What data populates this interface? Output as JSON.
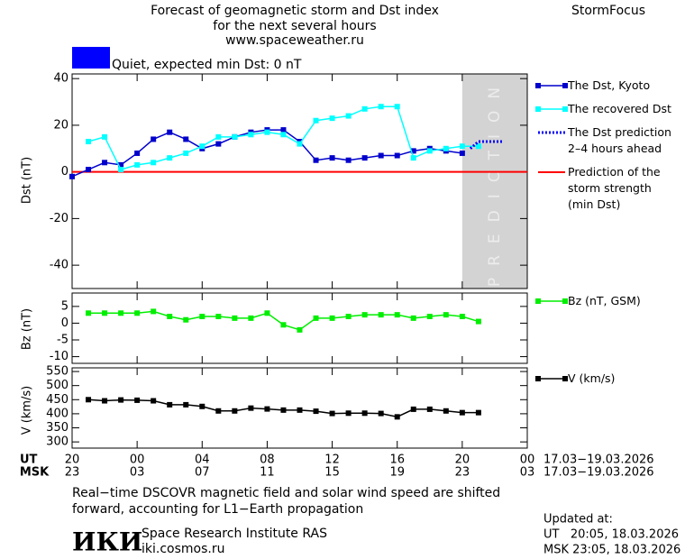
{
  "header": {
    "title_lines": [
      "Forecast of geomagnetic storm and Dst index",
      "for the next several hours",
      "www.spaceweather.ru"
    ],
    "brand": "StormFocus",
    "status": "Quiet, expected min Dst: 0 nT",
    "status_color": "#0000ff"
  },
  "time_axis": {
    "ut_label": "UT",
    "msk_label": "MSK",
    "msk_tick_labels": [
      "23",
      "03",
      "07",
      "11",
      "15",
      "19",
      "23",
      "03"
    ],
    "date_range_ut": "17.03−19.03.2026",
    "date_range_msk": "17.03−19.03.2026"
  },
  "chart_data": [
    {
      "type": "line",
      "ylabel": "Dst (nT)",
      "xlim": [
        0,
        28
      ],
      "ylim": [
        -50,
        42
      ],
      "yticks": [
        40,
        20,
        0,
        -20,
        -40
      ],
      "prediction_band": {
        "x": [
          24,
          28
        ],
        "label": "PREDICTION",
        "color": "#d3d3d3"
      },
      "series": [
        {
          "name": "The Dst, Kyoto",
          "color": "#0000cc",
          "marker": "square",
          "x": [
            0,
            1,
            2,
            3,
            4,
            5,
            6,
            7,
            8,
            9,
            10,
            11,
            12,
            13,
            14,
            15,
            16,
            17,
            18,
            19,
            20,
            21,
            22,
            23,
            24
          ],
          "values": [
            -2,
            1,
            4,
            3,
            8,
            14,
            17,
            14,
            10,
            12,
            15,
            17,
            18,
            18,
            13,
            5,
            6,
            5,
            6,
            7,
            7,
            9,
            10,
            9,
            8
          ]
        },
        {
          "name": "The recovered Dst",
          "color": "#00ffff",
          "marker": "square",
          "x": [
            1,
            2,
            3,
            4,
            5,
            6,
            7,
            8,
            9,
            10,
            11,
            12,
            13,
            14,
            15,
            16,
            17,
            18,
            19,
            20,
            21,
            22,
            23,
            24,
            25
          ],
          "values": [
            13,
            15,
            1,
            3,
            4,
            6,
            8,
            11,
            15,
            15,
            16,
            17,
            16,
            12,
            22,
            23,
            24,
            27,
            28,
            28,
            6,
            9,
            10,
            11,
            11
          ]
        },
        {
          "name": "The Dst prediction\n2–4 hours ahead",
          "color": "#0000ff",
          "style": "dotted",
          "x": [
            24.5,
            25,
            26.5
          ],
          "values": [
            10,
            13,
            13
          ]
        }
      ],
      "threshold": {
        "name": "Prediction of the\nstorm strength\n(min Dst)",
        "value": 0,
        "color": "#ff0000"
      }
    },
    {
      "type": "line",
      "ylabel": "Bz (nT)",
      "xlim": [
        0,
        28
      ],
      "ylim": [
        -12,
        9
      ],
      "yticks": [
        5,
        0,
        -5,
        -10
      ],
      "series": [
        {
          "name": "Bz (nT, GSM)",
          "color": "#00ee00",
          "marker": "square",
          "x": [
            1,
            2,
            3,
            4,
            5,
            6,
            7,
            8,
            9,
            10,
            11,
            12,
            13,
            14,
            15,
            16,
            17,
            18,
            19,
            20,
            21,
            22,
            23,
            24,
            25
          ],
          "values": [
            3,
            3,
            3,
            3,
            3.5,
            2,
            1,
            2,
            2,
            1.5,
            1.5,
            3,
            -0.5,
            -2,
            1.5,
            1.5,
            2,
            2.5,
            2.5,
            2.5,
            1.5,
            2,
            2.5,
            2,
            0.5
          ]
        }
      ]
    },
    {
      "type": "line",
      "ylabel": "V (km/s)",
      "xlim": [
        0,
        28
      ],
      "ylim": [
        278,
        563
      ],
      "yticks": [
        550,
        500,
        450,
        400,
        350,
        300
      ],
      "xticks": [
        {
          "value": 0,
          "label": "20"
        },
        {
          "value": 4,
          "label": "00"
        },
        {
          "value": 8,
          "label": "04"
        },
        {
          "value": 12,
          "label": "08"
        },
        {
          "value": 16,
          "label": "12"
        },
        {
          "value": 20,
          "label": "16"
        },
        {
          "value": 24,
          "label": "20"
        },
        {
          "value": 28,
          "label": "00"
        }
      ],
      "series": [
        {
          "name": "V (km/s)",
          "color": "#000000",
          "marker": "square",
          "x": [
            1,
            2,
            3,
            4,
            5,
            6,
            7,
            8,
            9,
            10,
            11,
            12,
            13,
            14,
            15,
            16,
            17,
            18,
            19,
            20,
            21,
            22,
            23,
            24,
            25
          ],
          "values": [
            450,
            446,
            449,
            448,
            446,
            432,
            432,
            426,
            410,
            410,
            420,
            417,
            413,
            413,
            409,
            401,
            402,
            402,
            401,
            389,
            416,
            416,
            410,
            404,
            404
          ]
        }
      ]
    }
  ],
  "footer": {
    "note": "Real−time DSCOVR magnetic field and solar wind speed are shifted\nforward, accounting for L1−Earth propagation",
    "logo": "ИКИ",
    "institute": "Space Research Institute RAS",
    "site": "iki.cosmos.ru",
    "updated_label": "Updated at:",
    "updated_ut": "UT   20:05, 18.03.2026",
    "updated_msk": "MSK 23:05, 18.03.2026"
  }
}
